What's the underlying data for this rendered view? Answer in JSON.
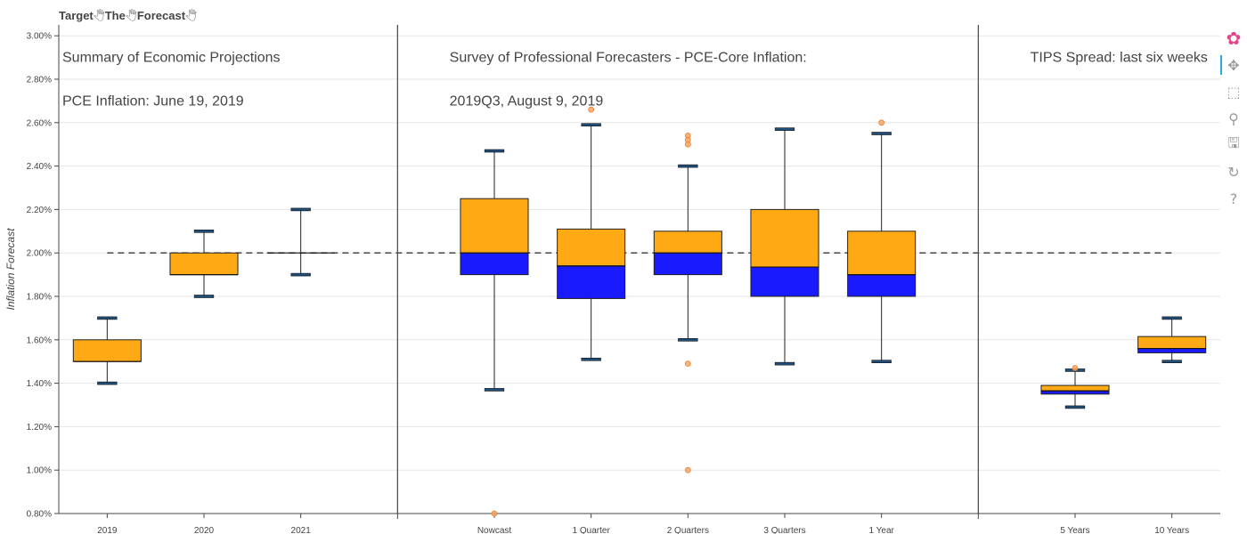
{
  "title": {
    "parts": [
      "Target",
      "The",
      "Forecast"
    ],
    "glyph": "🖑"
  },
  "colors": {
    "upper_box": "#FFAA14",
    "lower_box": "#1A1AFF",
    "whisker_cap": "#1F4E79",
    "outlier": "#F4A460",
    "target_line": "#555555",
    "grid": "#e6e6e6"
  },
  "toolbar": {
    "items": [
      {
        "name": "bokeh-logo-icon",
        "glyph": "✿"
      },
      {
        "name": "pan-icon",
        "glyph": "✥",
        "active": true
      },
      {
        "name": "box-zoom-icon",
        "glyph": "⬚"
      },
      {
        "name": "wheel-zoom-icon",
        "glyph": "⚲"
      },
      {
        "name": "save-icon",
        "glyph": "🖫"
      },
      {
        "name": "reset-icon",
        "glyph": "↻"
      },
      {
        "name": "help-icon",
        "glyph": "?"
      }
    ]
  },
  "chart_data": {
    "type": "box",
    "title": "",
    "xlabel": "",
    "ylabel": "Inflation Forecast",
    "ylim": [
      0.8,
      3.05
    ],
    "yticks": [
      "0.80%",
      "1.00%",
      "1.20%",
      "1.40%",
      "1.60%",
      "1.80%",
      "2.00%",
      "2.20%",
      "2.40%",
      "2.60%",
      "2.80%",
      "3.00%"
    ],
    "ytick_values": [
      0.8,
      1.0,
      1.2,
      1.4,
      1.6,
      1.8,
      2.0,
      2.2,
      2.4,
      2.6,
      2.8,
      3.0
    ],
    "grid": true,
    "target_line": 2.0,
    "categories": [
      "2019",
      "2020",
      "2021",
      "",
      "Nowcast",
      "1 Quarter",
      "2 Quarters",
      "3 Quarters",
      "1 Year",
      "",
      "5 Years",
      "10 Years"
    ],
    "separators_after": [
      3,
      9
    ],
    "annotations": [
      {
        "text": "Summary of Economic Projections",
        "category_index": 0,
        "y": 2.9
      },
      {
        "text": "PCE Inflation: June 19, 2019",
        "category_index": 0,
        "y": 2.7
      },
      {
        "text": "Survey of Professional Forecasters - PCE-Core Inflation:",
        "category_index": 4,
        "y": 2.9
      },
      {
        "text": "2019Q3, August 9, 2019",
        "category_index": 4,
        "y": 2.7
      },
      {
        "text": "TIPS Spread: last six weeks",
        "category_index": 10,
        "y": 2.9
      }
    ],
    "boxes": [
      {
        "category": "2019",
        "whisker_low": 1.4,
        "q1": 1.5,
        "median": 1.5,
        "q3": 1.6,
        "whisker_high": 1.7,
        "outliers": []
      },
      {
        "category": "2020",
        "whisker_low": 1.8,
        "q1": 1.9,
        "median": 1.9,
        "q3": 2.0,
        "whisker_high": 2.1,
        "outliers": []
      },
      {
        "category": "2021",
        "whisker_low": 1.9,
        "q1": 2.0,
        "median": 2.0,
        "q3": 2.0,
        "whisker_high": 2.2,
        "outliers": []
      },
      {
        "category": "Nowcast",
        "whisker_low": 1.37,
        "q1": 1.9,
        "median": 2.0,
        "q3": 2.25,
        "whisker_high": 2.47,
        "outliers": [
          0.8
        ]
      },
      {
        "category": "1 Quarter",
        "whisker_low": 1.51,
        "q1": 1.79,
        "median": 1.94,
        "q3": 2.11,
        "whisker_high": 2.59,
        "outliers": [
          2.66
        ]
      },
      {
        "category": "2 Quarters",
        "whisker_low": 1.6,
        "q1": 1.9,
        "median": 2.0,
        "q3": 2.1,
        "whisker_high": 2.4,
        "outliers": [
          2.54,
          2.52,
          2.5,
          1.49,
          1.0
        ]
      },
      {
        "category": "3 Quarters",
        "whisker_low": 1.49,
        "q1": 1.8,
        "median": 1.935,
        "q3": 2.2,
        "whisker_high": 2.57,
        "outliers": []
      },
      {
        "category": "1 Year",
        "whisker_low": 1.5,
        "q1": 1.8,
        "median": 1.9,
        "q3": 2.1,
        "whisker_high": 2.55,
        "outliers": [
          2.6
        ]
      },
      {
        "category": "5 Years",
        "whisker_low": 1.29,
        "q1": 1.35,
        "median": 1.365,
        "q3": 1.39,
        "whisker_high": 1.46,
        "outliers": [
          1.47
        ]
      },
      {
        "category": "10 Years",
        "whisker_low": 1.5,
        "q1": 1.54,
        "median": 1.56,
        "q3": 1.615,
        "whisker_high": 1.7,
        "outliers": []
      }
    ]
  }
}
